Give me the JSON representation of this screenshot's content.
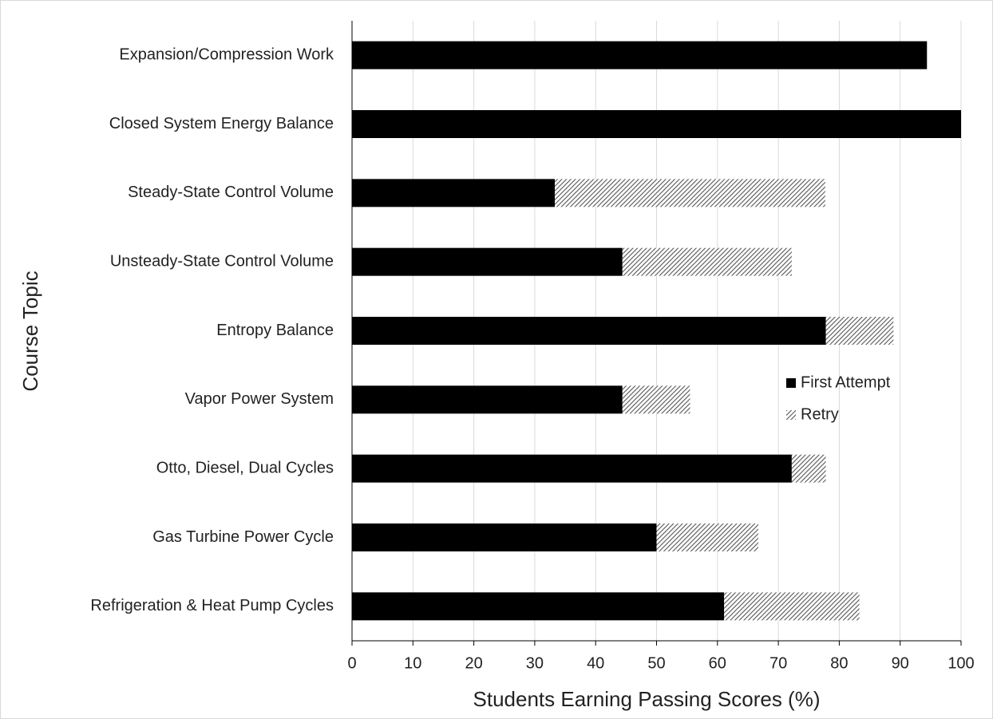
{
  "chart_data": {
    "type": "bar",
    "orientation": "horizontal",
    "stacked": true,
    "xlabel": "Students Earning Passing Scores (%)",
    "ylabel": "Course Topic",
    "categories": [
      "Expansion/Compression Work",
      "Closed System Energy Balance",
      "Steady-State Control Volume",
      "Unsteady-State Control Volume",
      "Entropy Balance",
      "Vapor Power System",
      "Otto, Diesel, Dual Cycles",
      "Gas Turbine Power Cycle",
      "Refrigeration & Heat Pump Cycles"
    ],
    "series": [
      {
        "name": "First Attempt",
        "color": "#000000",
        "values": [
          94.4,
          100,
          33.3,
          44.4,
          77.8,
          44.4,
          72.2,
          50,
          61.1
        ]
      },
      {
        "name": "Retry",
        "color": "#555555",
        "pattern": "hatch",
        "values": [
          0,
          0,
          44.4,
          27.8,
          11.1,
          11.1,
          5.6,
          16.7,
          22.2
        ]
      }
    ],
    "xlim": [
      0,
      100
    ],
    "xticks": [
      0,
      10,
      20,
      30,
      40,
      50,
      60,
      70,
      80,
      90,
      100
    ],
    "grid": true,
    "legend": "right"
  }
}
